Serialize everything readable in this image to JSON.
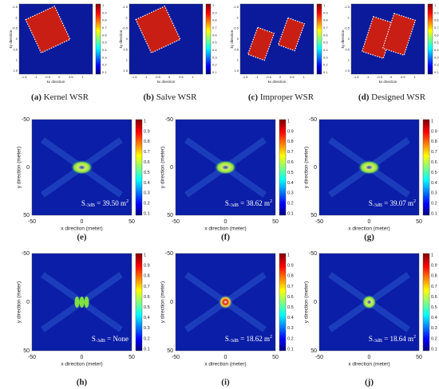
{
  "row1": {
    "panels": [
      {
        "label": "(a)",
        "caption": "Kernel WSR"
      },
      {
        "label": "(b)",
        "caption": "Salve WSR"
      },
      {
        "label": "(c)",
        "caption": "Improper WSR"
      },
      {
        "label": "(d)",
        "caption": "Designed WSR"
      }
    ],
    "x_label": "kx direction",
    "y_label": "ky direction",
    "xticks": [
      "-1.5",
      "-1",
      "-0.5",
      "0",
      "0.5",
      "1"
    ],
    "yticks": [
      "-1.5",
      "-1",
      "-0.5",
      "0",
      "0.5",
      "1",
      "1.5"
    ],
    "colorbar_ticks": [
      "1",
      "0.9",
      "0.8",
      "0.7",
      "0.6",
      "0.5",
      "0.4",
      "0.3",
      "0.2",
      "0.1"
    ]
  },
  "rows": [
    {
      "panels": [
        {
          "label": "(e)",
          "symbol": "S",
          "subscript": "-3dB",
          "text": " = 39.50 m",
          "sup": "2"
        },
        {
          "label": "(f)",
          "symbol": "S",
          "subscript": "-3dB",
          "text": " = 38.62 m",
          "sup": "2"
        },
        {
          "label": "(g)",
          "symbol": "S",
          "subscript": "-3dB",
          "text": " = 39.07 m",
          "sup": "2"
        }
      ]
    },
    {
      "panels": [
        {
          "label": "(h)",
          "symbol": "S",
          "subscript": "-3dB",
          "text": " = None"
        },
        {
          "label": "(i)",
          "symbol": "S",
          "subscript": "-3dB",
          "text": " = 18.62 m",
          "sup": "2"
        },
        {
          "label": "(j)",
          "symbol": "S",
          "subscript": "-3dB",
          "text": " = 18.64 m",
          "sup": "2"
        }
      ]
    }
  ],
  "x_label": "x direction (meter)",
  "y_label": "y direction (meter)",
  "xticks": [
    "-50",
    "0",
    "50"
  ],
  "yticks": [
    "-50",
    "0",
    "50"
  ],
  "colorbar_ticks": [
    "1",
    "0.9",
    "0.8",
    "0.7",
    "0.6",
    "0.5",
    "0.4",
    "0.3",
    "0.2",
    "0.1"
  ]
}
